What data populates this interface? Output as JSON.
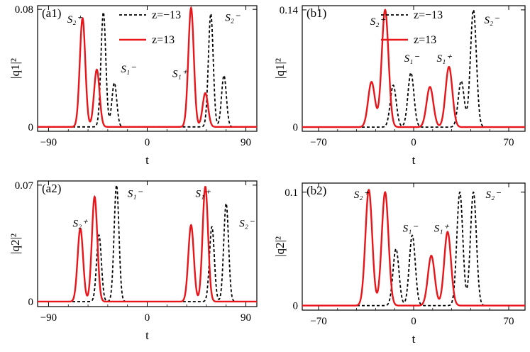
{
  "legend": {
    "dashed": "z=−13",
    "solid": "z=13"
  },
  "colors": {
    "solid": "#e8161b",
    "dashed": "#000000"
  },
  "chart_data": [
    {
      "type": "line",
      "panel_label": "(a1)",
      "xlabel": "t",
      "ylabel": "|q1|²",
      "xlim": [
        -100,
        100
      ],
      "ylim": [
        -0.003,
        0.0825
      ],
      "xticks": [
        -90,
        0,
        90
      ],
      "yticks": [
        0,
        0.08
      ],
      "ytick_labels": [
        "0",
        "0.08"
      ],
      "series": [
        {
          "name": "z=−13",
          "style": "dashed",
          "peaks": [
            [
              -40,
              0.078,
              2.2
            ],
            [
              -30,
              0.03,
              2.2
            ],
            [
              58,
              0.077,
              2.2
            ],
            [
              70,
              0.035,
              2.2
            ]
          ]
        },
        {
          "name": "z=13",
          "style": "solid",
          "peaks": [
            [
              -59,
              0.074,
              2.5
            ],
            [
              -46,
              0.039,
              2.5
            ],
            [
              40,
              0.081,
              2.5
            ],
            [
              53,
              0.023,
              2.5
            ]
          ]
        }
      ],
      "annotations": [
        {
          "text": "S₂⁺",
          "x": -73,
          "y": 0.071
        },
        {
          "text": "S₁⁻",
          "x": -24,
          "y": 0.037
        },
        {
          "text": "S₁⁺",
          "x": 23,
          "y": 0.034
        },
        {
          "text": "S₂⁻",
          "x": 71,
          "y": 0.072
        }
      ]
    },
    {
      "type": "line",
      "panel_label": "(b1)",
      "xlabel": "t",
      "ylabel": "|q1|²",
      "xlim": [
        -82,
        82
      ],
      "ylim": [
        -0.005,
        0.145
      ],
      "xticks": [
        -70,
        0,
        70
      ],
      "yticks": [
        0,
        0.14
      ],
      "ytick_labels": [
        "0",
        "0.14"
      ],
      "series": [
        {
          "name": "z=−13",
          "style": "dashed",
          "peaks": [
            [
              -15,
              0.05,
              2.2
            ],
            [
              -2,
              0.065,
              2.2
            ],
            [
              35,
              0.055,
              2.2
            ],
            [
              44,
              0.14,
              2.2
            ]
          ]
        },
        {
          "name": "z=13",
          "style": "solid",
          "peaks": [
            [
              -31,
              0.054,
              2.5
            ],
            [
              -21,
              0.14,
              2.5
            ],
            [
              12,
              0.048,
              2.5
            ],
            [
              26,
              0.072,
              2.5
            ]
          ]
        }
      ],
      "annotations": [
        {
          "text": "S₂⁺",
          "x": -32,
          "y": 0.122
        },
        {
          "text": "S₁⁻",
          "x": -7,
          "y": 0.078
        },
        {
          "text": "S₁⁺",
          "x": 17,
          "y": 0.078
        },
        {
          "text": "S₂⁻",
          "x": 52,
          "y": 0.124
        }
      ]
    },
    {
      "type": "line",
      "panel_label": "(a2)",
      "xlabel": "t",
      "ylabel": "|q2|²",
      "xlim": [
        -100,
        100
      ],
      "ylim": [
        -0.003,
        0.0725
      ],
      "xticks": [
        -90,
        0,
        90
      ],
      "yticks": [
        0,
        0.07
      ],
      "ytick_labels": [
        "0",
        "0.07"
      ],
      "series": [
        {
          "name": "z=−13",
          "style": "dashed",
          "peaks": [
            [
              -44,
              0.04,
              2.2
            ],
            [
              -28,
              0.07,
              2.2
            ],
            [
              59,
              0.045,
              2.2
            ],
            [
              72,
              0.059,
              2.2
            ]
          ]
        },
        {
          "name": "z=13",
          "style": "solid",
          "peaks": [
            [
              -61,
              0.044,
              2.5
            ],
            [
              -48,
              0.063,
              2.5
            ],
            [
              40,
              0.046,
              2.5
            ],
            [
              53,
              0.069,
              2.5
            ]
          ]
        }
      ],
      "annotations": [
        {
          "text": "S₂⁺",
          "x": -68,
          "y": 0.045
        },
        {
          "text": "S₁⁻",
          "x": -18,
          "y": 0.063
        },
        {
          "text": "S₁⁺",
          "x": 44,
          "y": 0.063
        },
        {
          "text": "S₂⁻",
          "x": 84,
          "y": 0.045
        }
      ]
    },
    {
      "type": "line",
      "panel_label": "(b2)",
      "xlabel": "t",
      "ylabel": "|q2|²",
      "xlim": [
        -82,
        82
      ],
      "ylim": [
        -0.004,
        0.108
      ],
      "xticks": [
        -70,
        0,
        70
      ],
      "yticks": [
        0,
        0.1
      ],
      "ytick_labels": [
        "0",
        "0.1"
      ],
      "series": [
        {
          "name": "z=−13",
          "style": "dashed",
          "peaks": [
            [
              -13,
              0.05,
              2.2
            ],
            [
              -1,
              0.062,
              2.2
            ],
            [
              34,
              0.1,
              2.2
            ],
            [
              44,
              0.1,
              2.2
            ]
          ]
        },
        {
          "name": "z=13",
          "style": "solid",
          "peaks": [
            [
              -33,
              0.102,
              2.5
            ],
            [
              -21,
              0.1,
              2.5
            ],
            [
              13,
              0.044,
              2.5
            ],
            [
              25,
              0.065,
              2.5
            ]
          ]
        }
      ],
      "annotations": [
        {
          "text": "S₂⁺",
          "x": -44,
          "y": 0.095
        },
        {
          "text": "S₁⁻",
          "x": -8,
          "y": 0.065
        },
        {
          "text": "S₁⁺",
          "x": 15,
          "y": 0.065
        },
        {
          "text": "S₂⁻",
          "x": 53,
          "y": 0.095
        }
      ]
    }
  ]
}
